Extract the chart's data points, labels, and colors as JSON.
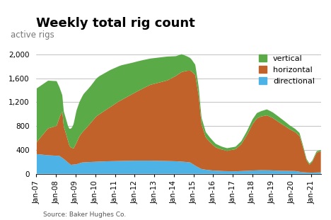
{
  "title": "Weekly total rig count",
  "subtitle": "active rigs",
  "source": "Source: Baker Hughes Co.",
  "colors": {
    "vertical": "#5aab47",
    "horizontal": "#c0622a",
    "directional": "#4db3e6"
  },
  "ylim": [
    0,
    2100
  ],
  "yticks": [
    0,
    400,
    800,
    1200,
    1600,
    2000
  ],
  "title_fontsize": 13,
  "subtitle_fontsize": 8.5,
  "tick_fontsize": 7.5,
  "legend_fontsize": 8
}
